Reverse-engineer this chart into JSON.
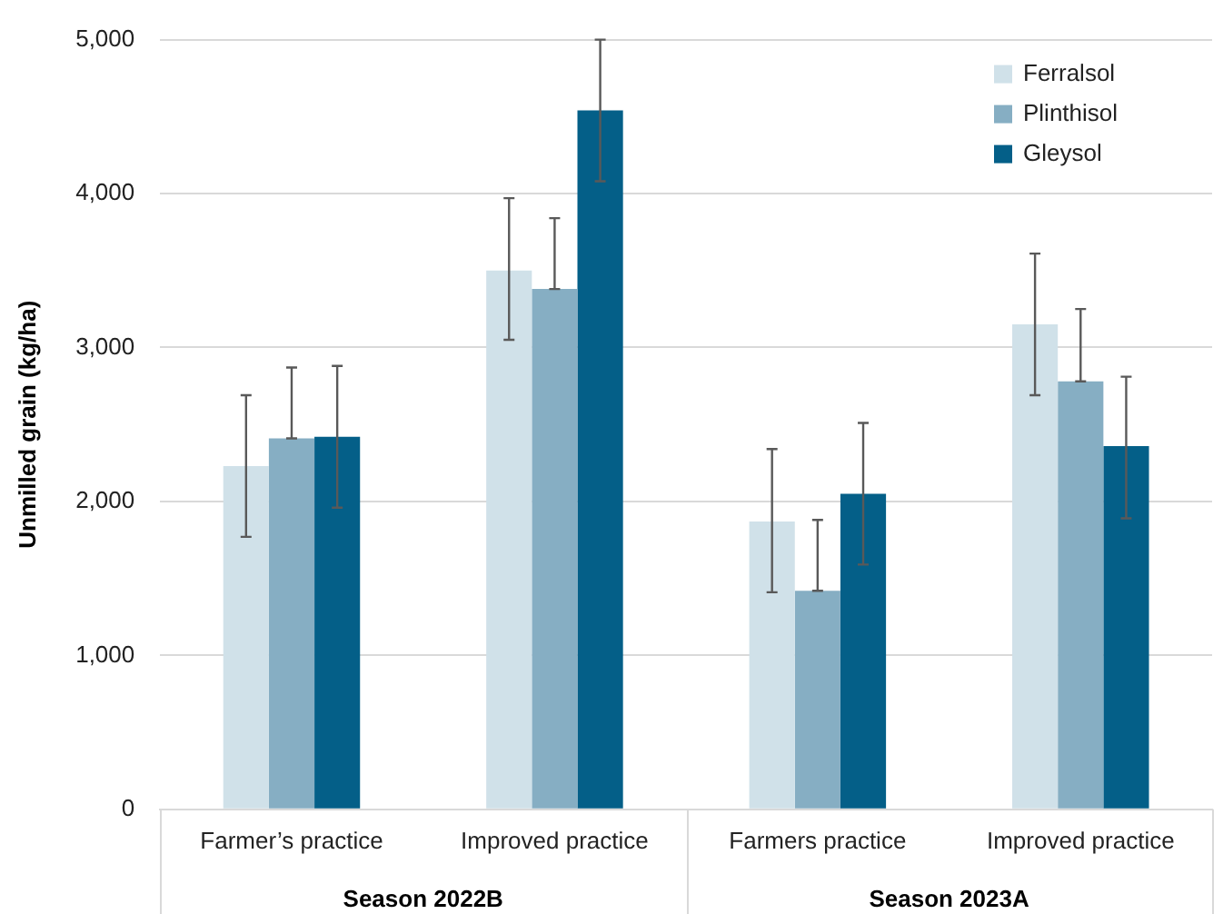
{
  "chart_data": {
    "type": "bar",
    "ylabel": "Unmilled grain (kg/ha)",
    "categories": [
      "Farmer’s practice",
      "Improved practice",
      "Farmers practice",
      "Improved practice"
    ],
    "series": [
      {
        "name": "Ferralsol",
        "color": "#d0e1e9",
        "values": [
          2230,
          3500,
          1870,
          3150
        ],
        "errors": [
          [
            1770,
            2690
          ],
          [
            3050,
            3970
          ],
          [
            1410,
            2340
          ],
          [
            2690,
            3610
          ]
        ]
      },
      {
        "name": "Plinthisol",
        "color": "#86aec3",
        "values": [
          2410,
          3380,
          1420,
          2780
        ],
        "errors": [
          [
            2410,
            2870
          ],
          [
            3380,
            3840
          ],
          [
            1420,
            1880
          ],
          [
            2780,
            3250
          ]
        ]
      },
      {
        "name": "Gleysol",
        "color": "#045f88",
        "values": [
          2420,
          4540,
          2050,
          2360
        ],
        "errors": [
          [
            1960,
            2880
          ],
          [
            4080,
            5000
          ],
          [
            1590,
            2510
          ],
          [
            1890,
            2810
          ]
        ]
      }
    ],
    "annotations": [
      "Season 2022B",
      "Season 2023A"
    ],
    "ylim": [
      0,
      5000
    ],
    "yticks": [
      0,
      {
        "value": 1000,
        "label": "1,000"
      },
      {
        "value": 2000,
        "label": "2,000"
      },
      {
        "value": 3000,
        "label": "3,000"
      },
      {
        "value": 4000,
        "label": "4,000"
      },
      {
        "value": 5000,
        "label": "5,000"
      }
    ],
    "grid": "y",
    "legend": "top right"
  }
}
